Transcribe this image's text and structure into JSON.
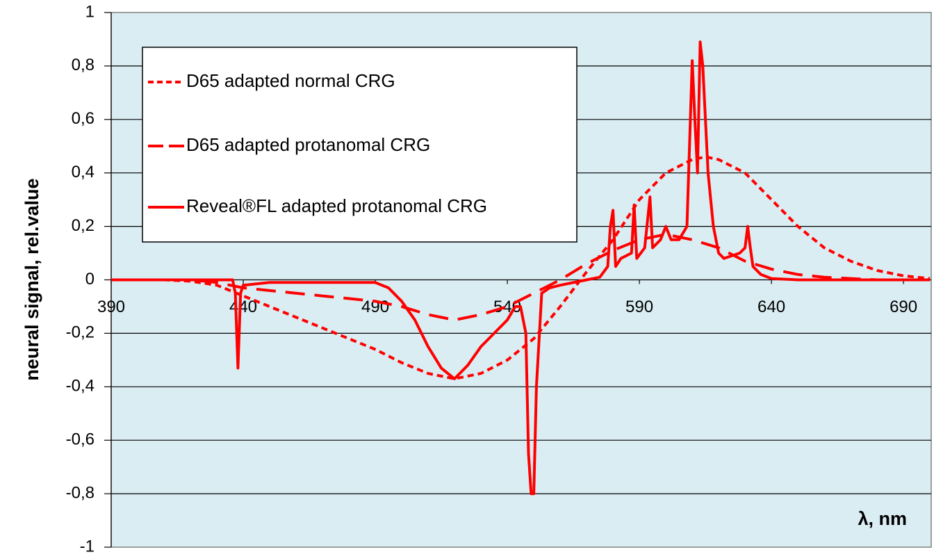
{
  "chart_data": {
    "type": "line",
    "ylabel": "neural signal, rel.value",
    "xlabel": "λ, nm",
    "xlim": [
      390,
      700.5
    ],
    "xticks": [
      390,
      440,
      490,
      540,
      590,
      640,
      690
    ],
    "ylim": [
      -1,
      1
    ],
    "yticks": [
      -1,
      {
        "value": -0.8,
        "label": "-0,8"
      },
      {
        "value": -0.6,
        "label": "-0,6"
      },
      {
        "value": -0.4,
        "label": "-0,4"
      },
      {
        "value": -0.2,
        "label": "-0,2"
      },
      0,
      {
        "value": 0.2,
        "label": "0,2"
      },
      {
        "value": 0.4,
        "label": "0,4"
      },
      {
        "value": 0.6,
        "label": "0,6"
      },
      {
        "value": 0.8,
        "label": "0,8"
      },
      1
    ],
    "grid": true,
    "legend": "upper left",
    "series": [
      {
        "name": "D65 adapted normal CRG",
        "color": "#ff0000",
        "style": "dotted",
        "x": [
          390,
          400,
          410,
          420,
          430,
          440,
          450,
          460,
          470,
          480,
          490,
          500,
          510,
          520,
          530,
          540,
          550,
          560,
          570,
          580,
          590,
          600,
          610,
          615,
          620,
          630,
          640,
          650,
          660,
          670,
          680,
          690,
          700
        ],
        "values": [
          0,
          0,
          0,
          -0.005,
          -0.02,
          -0.06,
          -0.1,
          -0.14,
          -0.18,
          -0.22,
          -0.26,
          -0.31,
          -0.35,
          -0.37,
          -0.35,
          -0.3,
          -0.22,
          -0.1,
          0.03,
          0.15,
          0.3,
          0.4,
          0.45,
          0.46,
          0.45,
          0.4,
          0.3,
          0.2,
          0.12,
          0.07,
          0.035,
          0.015,
          0.005
        ]
      },
      {
        "name": "D65 adapted protanomal CRG",
        "color": "#ff0000",
        "style": "dashed",
        "x": [
          390,
          420,
          430,
          440,
          450,
          460,
          470,
          480,
          490,
          500,
          510,
          520,
          530,
          540,
          550,
          560,
          570,
          580,
          590,
          600,
          610,
          620,
          630,
          640,
          650,
          660,
          680,
          700
        ],
        "values": [
          0,
          0,
          -0.01,
          -0.03,
          -0.04,
          -0.05,
          -0.06,
          -0.07,
          -0.08,
          -0.1,
          -0.13,
          -0.15,
          -0.13,
          -0.1,
          -0.05,
          0,
          0.06,
          0.11,
          0.15,
          0.17,
          0.15,
          0.12,
          0.07,
          0.04,
          0.02,
          0.01,
          0,
          0
        ]
      },
      {
        "name": "Reveal®FL adapted protanomal CRG",
        "color": "#ff0000",
        "style": "solid",
        "x": [
          390,
          436,
          437,
          438,
          439,
          440,
          450,
          490,
          495,
          500,
          505,
          510,
          515,
          520,
          525,
          530,
          535,
          538,
          540,
          543,
          545,
          547,
          548,
          549,
          550,
          551,
          553,
          556,
          560,
          570,
          575,
          578,
          579,
          580,
          581,
          583,
          587,
          588,
          589,
          592,
          594,
          595,
          598,
          600,
          602,
          605,
          608,
          610,
          611,
          612,
          613,
          614,
          616,
          618,
          620,
          622,
          625,
          628,
          630,
          631,
          632,
          633,
          636,
          640,
          650,
          700
        ],
        "values": [
          0,
          0,
          -0.05,
          -0.33,
          -0.05,
          -0.02,
          -0.01,
          -0.01,
          -0.03,
          -0.08,
          -0.15,
          -0.25,
          -0.33,
          -0.37,
          -0.32,
          -0.25,
          -0.2,
          -0.17,
          -0.15,
          -0.1,
          -0.1,
          -0.2,
          -0.65,
          -0.8,
          -0.8,
          -0.4,
          -0.05,
          -0.03,
          -0.02,
          0,
          0.01,
          0.05,
          0.2,
          0.26,
          0.05,
          0.08,
          0.1,
          0.28,
          0.08,
          0.12,
          0.31,
          0.12,
          0.15,
          0.2,
          0.15,
          0.15,
          0.2,
          0.82,
          0.6,
          0.4,
          0.89,
          0.8,
          0.4,
          0.2,
          0.1,
          0.08,
          0.09,
          0.1,
          0.12,
          0.2,
          0.12,
          0.05,
          0.02,
          0.005,
          0,
          0
        ]
      }
    ]
  }
}
